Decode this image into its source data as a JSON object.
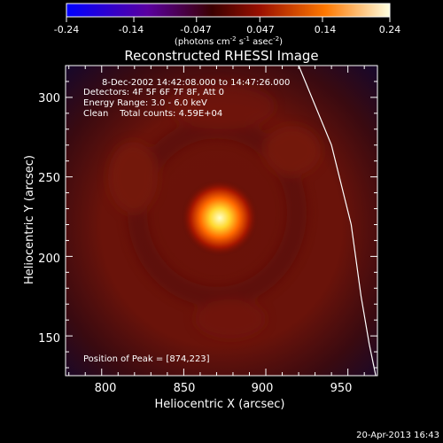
{
  "chart_data": {
    "type": "heatmap",
    "title": "Reconstructed RHESSI Image",
    "xlabel": "Heliocentric X (arcsec)",
    "ylabel": "Heliocentric Y (arcsec)",
    "xlim": [
      778,
      968
    ],
    "ylim": [
      125,
      320
    ],
    "xticks": [
      800,
      850,
      900,
      950
    ],
    "yticks": [
      150,
      200,
      250,
      300
    ],
    "colorbar": {
      "ticks": [
        "-0.24",
        "-0.14",
        "-0.047",
        "0.047",
        "0.14",
        "0.24"
      ],
      "tick_values": [
        -0.24,
        -0.14,
        -0.047,
        0.047,
        0.14,
        0.24
      ],
      "range": [
        -0.24,
        0.24
      ],
      "unit_main": "(photons cm",
      "unit_sup1": "-2",
      "unit_mid": " s",
      "unit_sup2": "-1",
      "unit_end": " asec",
      "unit_sup3": "-2",
      "unit_close": ")"
    },
    "annotations": [
      "8-Dec-2002 14:42:08.000 to 14:47:26.000",
      "Detectors: 4F 5F 6F 7F 8F, Att 0",
      "Energy Range: 3.0 - 6.0 keV",
      "Clean    Total counts: 4.59E+04"
    ],
    "peak_label": "Position of Peak = [874,223]",
    "peak": [
      874,
      223
    ],
    "limb_line": [
      [
        920,
        320
      ],
      [
        940,
        270
      ],
      [
        952,
        220
      ],
      [
        958,
        175
      ],
      [
        963,
        145
      ],
      [
        967,
        125
      ]
    ],
    "footer": "20-Apr-2013 16:43"
  }
}
